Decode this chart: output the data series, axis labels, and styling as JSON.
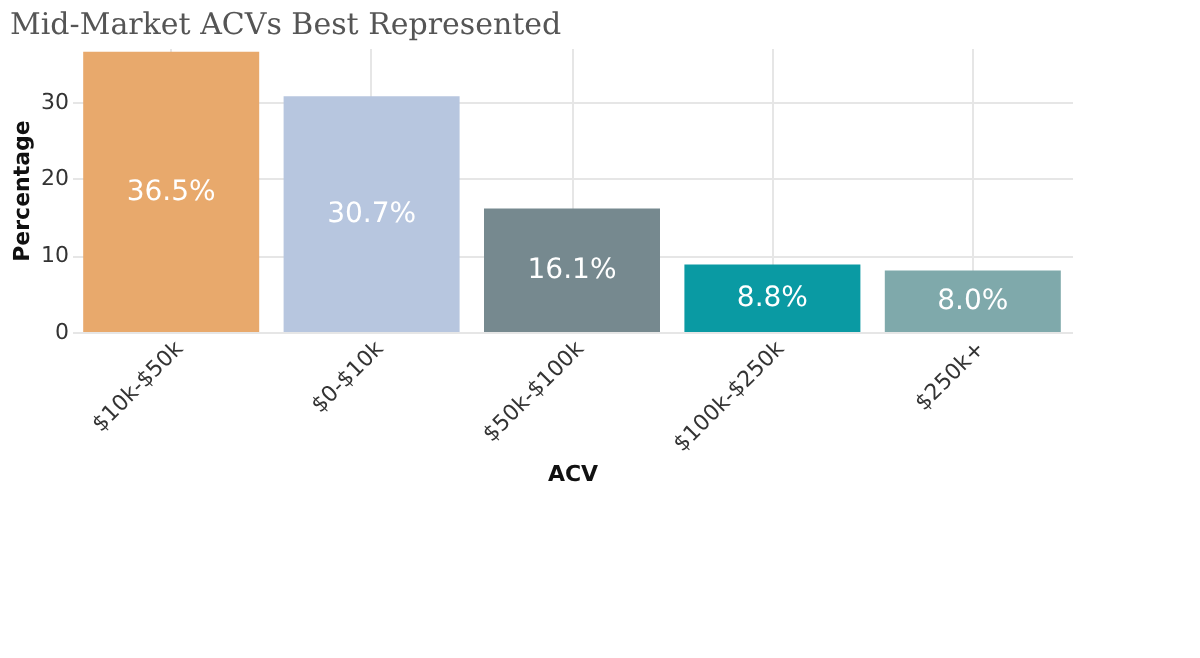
{
  "chart_data": {
    "type": "bar",
    "title": "Mid-Market ACVs Best Represented",
    "xlabel": "ACV",
    "ylabel": "Percentage",
    "categories": [
      "$10k-$50k",
      "$0-$10k",
      "$50k-$100k",
      "$100k-$250k",
      "$250k+"
    ],
    "values": [
      36.5,
      30.7,
      16.1,
      8.8,
      8.0
    ],
    "colors": [
      "#e8a96c",
      "#b7c6df",
      "#76898f",
      "#0a9aa3",
      "#7fa9ab"
    ],
    "value_labels": [
      "36.5%",
      "30.7%",
      "16.1%",
      "8.8%",
      "8.0%"
    ],
    "ylim": [
      0,
      37
    ],
    "yticks": [
      0,
      10,
      20,
      30
    ],
    "grid": true
  }
}
